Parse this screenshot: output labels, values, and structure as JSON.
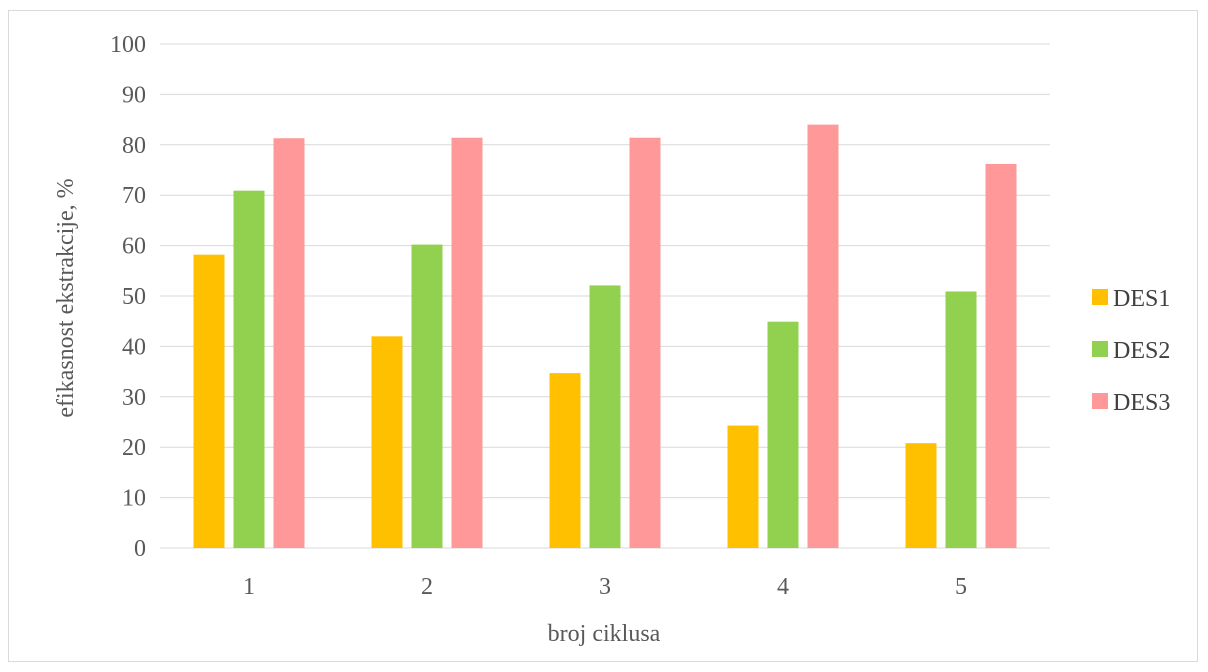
{
  "chart_data": {
    "type": "bar",
    "categories": [
      "1",
      "2",
      "3",
      "4",
      "5"
    ],
    "series": [
      {
        "name": "DES1",
        "color": "#ffc000",
        "values": [
          58.2,
          42.0,
          34.7,
          24.3,
          20.8
        ]
      },
      {
        "name": "DES2",
        "color": "#92d050",
        "values": [
          70.9,
          60.2,
          52.1,
          44.9,
          50.9
        ]
      },
      {
        "name": "DES3",
        "color": "#ff9999",
        "values": [
          81.3,
          81.4,
          81.4,
          84.0,
          76.2
        ]
      }
    ],
    "title": "",
    "xlabel": "broj ciklusa",
    "ylabel": "efikasnost ekstrakcije, %",
    "ylim": [
      0,
      100
    ],
    "yticks": [
      0,
      10,
      20,
      30,
      40,
      50,
      60,
      70,
      80,
      90,
      100
    ],
    "grid": true,
    "legend_position": "right"
  }
}
